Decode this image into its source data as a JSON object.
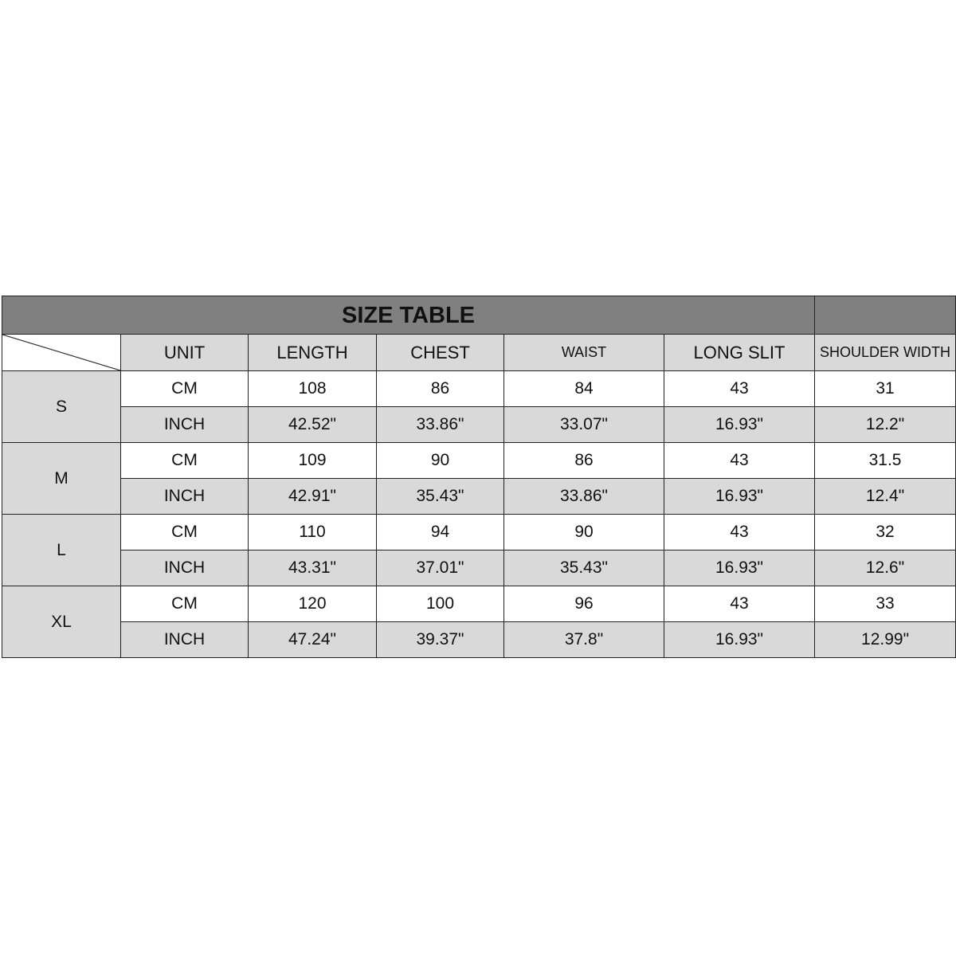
{
  "title": "SIZE TABLE",
  "headers": [
    "UNIT",
    "LENGTH",
    "CHEST",
    "WAIST",
    "LONG SLIT",
    "SHOULDER WIDTH"
  ],
  "rows": [
    {
      "size": "S",
      "cm": [
        "CM",
        "108",
        "86",
        "84",
        "43",
        "31"
      ],
      "inch": [
        "INCH",
        "42.52\"",
        "33.86\"",
        "33.07\"",
        "16.93\"",
        "12.2\""
      ]
    },
    {
      "size": "M",
      "cm": [
        "CM",
        "109",
        "90",
        "86",
        "43",
        "31.5"
      ],
      "inch": [
        "INCH",
        "42.91\"",
        "35.43\"",
        "33.86\"",
        "16.93\"",
        "12.4\""
      ]
    },
    {
      "size": "L",
      "cm": [
        "CM",
        "110",
        "94",
        "90",
        "43",
        "32"
      ],
      "inch": [
        "INCH",
        "43.31\"",
        "37.01\"",
        "35.43\"",
        "16.93\"",
        "12.6\""
      ]
    },
    {
      "size": "XL",
      "cm": [
        "CM",
        "120",
        "100",
        "96",
        "43",
        "33"
      ],
      "inch": [
        "INCH",
        "47.24\"",
        "39.37\"",
        "37.8\"",
        "16.93\"",
        "12.99\""
      ]
    }
  ]
}
